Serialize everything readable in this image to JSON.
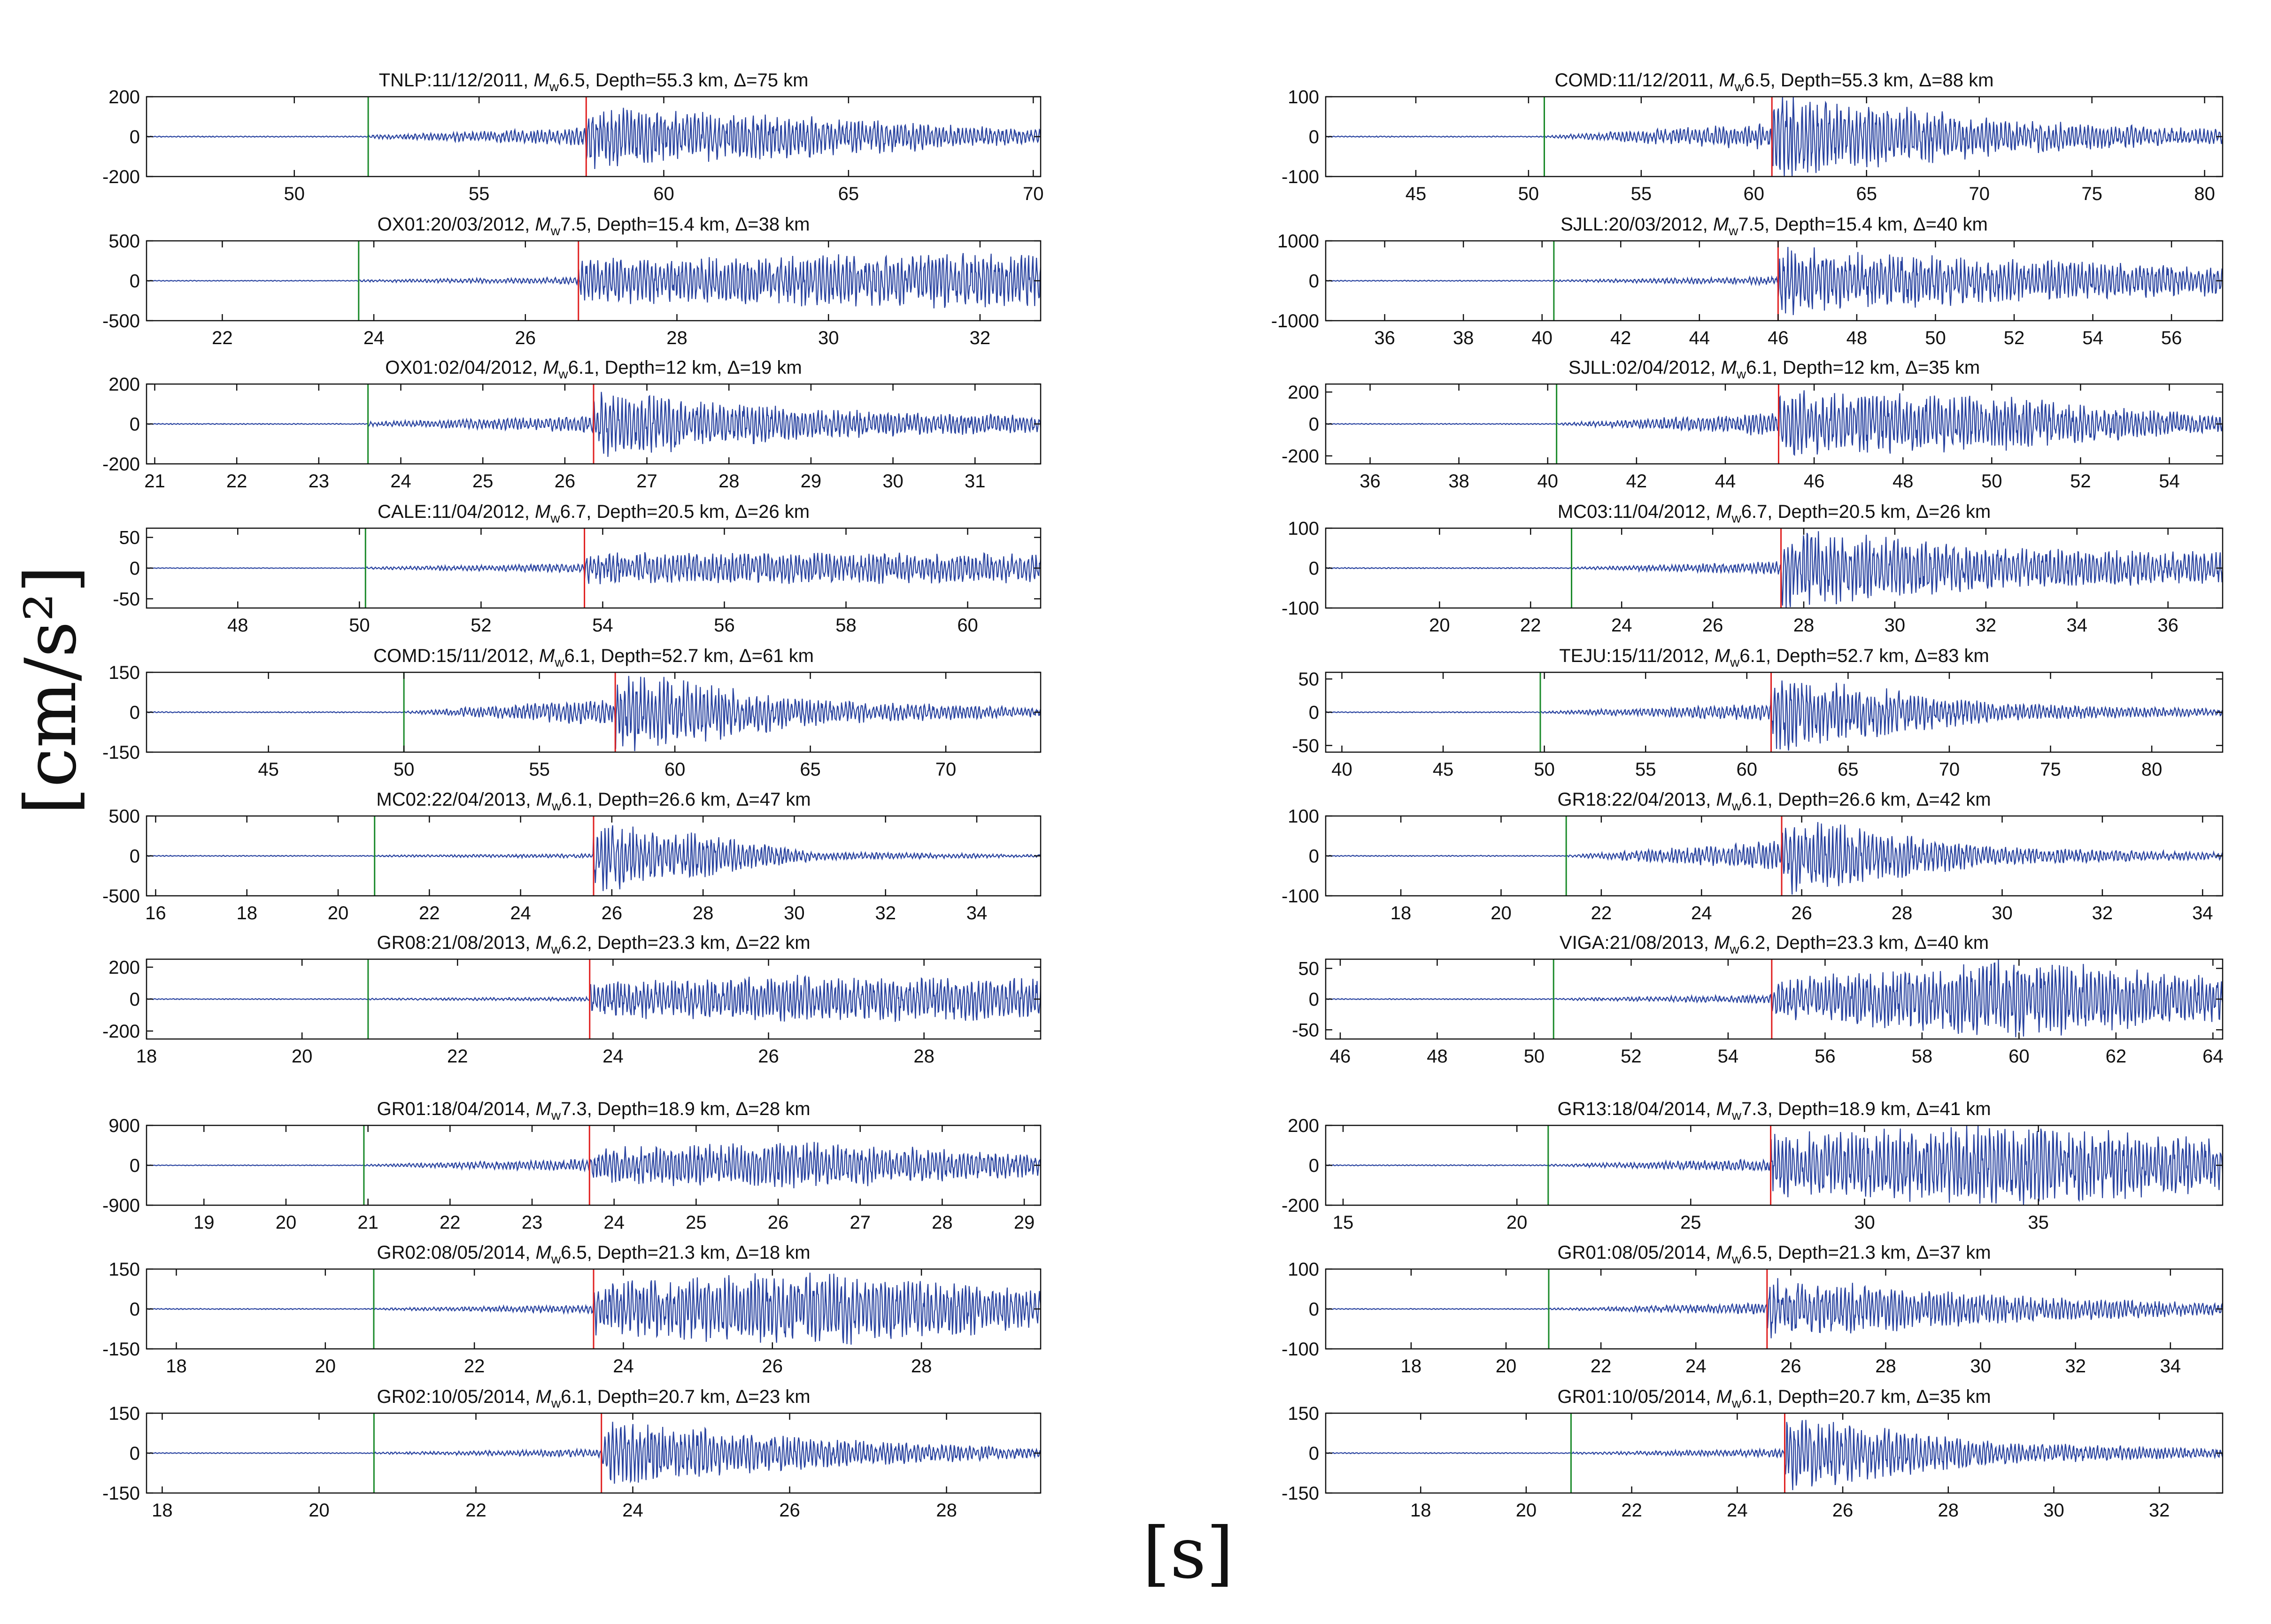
{
  "figure": {
    "y_axis_label": "[cm/s²]",
    "x_axis_label": "[s]",
    "colors": {
      "trace": "#2a44a0",
      "p_marker": "#1a8a2a",
      "s_marker": "#e02020",
      "axes": "#111111"
    }
  },
  "chart_data": [
    {
      "type": "line",
      "col": 0,
      "row": 0,
      "station": "TNLP",
      "date": "11/12/2011",
      "mw": "6.5",
      "depth": "55.3",
      "delta": "75",
      "title": "TNLP:11/12/2011, Mw6.5, Depth=55.3 km, Δ=75 km",
      "xlim": [
        46,
        70.2
      ],
      "xticks": [
        50,
        55,
        60,
        65,
        70
      ],
      "ylim": [
        -200,
        200
      ],
      "yticks": [
        200,
        0,
        -200
      ],
      "yticklabels": [
        "200",
        "0",
        "-200"
      ],
      "p_pick": 52.0,
      "s_pick": 57.9,
      "amp_max": 190,
      "env": [
        0.04,
        0.2,
        0.7,
        0.45,
        0.15
      ]
    },
    {
      "type": "line",
      "col": 0,
      "row": 1,
      "station": "OX01",
      "date": "20/03/2012",
      "mw": "7.5",
      "depth": "15.4",
      "delta": "38",
      "title": "OX01:20/03/2012, Mw7.5, Depth=15.4 km, Δ=38 km",
      "xlim": [
        21,
        32.8
      ],
      "xticks": [
        22,
        24,
        26,
        28,
        30,
        32
      ],
      "ylim": [
        -500,
        500
      ],
      "yticks": [
        500,
        0,
        -500
      ],
      "yticklabels": [
        "500",
        "0",
        "-500"
      ],
      "p_pick": 23.8,
      "s_pick": 26.7,
      "amp_max": 380,
      "env": [
        0.03,
        0.1,
        0.6,
        0.7,
        0.8
      ]
    },
    {
      "type": "line",
      "col": 0,
      "row": 2,
      "station": "OX01",
      "date": "02/04/2012",
      "mw": "6.1",
      "depth": "12",
      "delta": "19",
      "title": "OX01:02/04/2012, Mw6.1, Depth=12 km, Δ=19 km",
      "xlim": [
        20.9,
        31.8
      ],
      "xticks": [
        21,
        22,
        23,
        24,
        25,
        26,
        27,
        28,
        29,
        30,
        31
      ],
      "ylim": [
        -200,
        200
      ],
      "yticks": [
        200,
        0,
        -200
      ],
      "yticklabels": [
        "200",
        "0",
        "-200"
      ],
      "p_pick": 23.6,
      "s_pick": 26.35,
      "amp_max": 180,
      "env": [
        0.05,
        0.2,
        0.8,
        0.35,
        0.2
      ]
    },
    {
      "type": "line",
      "col": 0,
      "row": 3,
      "station": "CALE",
      "date": "11/04/2012",
      "mw": "6.7",
      "depth": "20.5",
      "delta": "26",
      "title": "CALE:11/04/2012, Mw6.7, Depth=20.5 km, Δ=26 km",
      "xlim": [
        46.5,
        61.2
      ],
      "xticks": [
        48,
        50,
        52,
        54,
        56,
        58,
        60
      ],
      "ylim": [
        -65,
        65
      ],
      "yticks": [
        50,
        0,
        -50
      ],
      "yticklabels": [
        "50",
        "0",
        "-50"
      ],
      "p_pick": 50.1,
      "s_pick": 53.7,
      "amp_max": 40,
      "env": [
        0.04,
        0.15,
        0.55,
        0.55,
        0.5
      ]
    },
    {
      "type": "line",
      "col": 0,
      "row": 4,
      "station": "COMD",
      "date": "15/11/2012",
      "mw": "6.1",
      "depth": "52.7",
      "delta": "61",
      "title": "COMD:15/11/2012, Mw6.1, Depth=52.7 km, Δ=61 km",
      "xlim": [
        40.5,
        73.5
      ],
      "xticks": [
        45,
        50,
        55,
        60,
        65,
        70
      ],
      "ylim": [
        -150,
        150
      ],
      "yticks": [
        150,
        0,
        -150
      ],
      "yticklabels": [
        "150",
        "0",
        "-150"
      ],
      "p_pick": 50.0,
      "s_pick": 57.8,
      "amp_max": 145,
      "env": [
        0.02,
        0.3,
        0.9,
        0.25,
        0.1
      ]
    },
    {
      "type": "line",
      "col": 0,
      "row": 5,
      "station": "MC02",
      "date": "22/04/2013",
      "mw": "6.1",
      "depth": "26.6",
      "delta": "47",
      "title": "MC02:22/04/2013, Mw6.1, Depth=26.6 km, Δ=47 km",
      "xlim": [
        15.8,
        35.4
      ],
      "xticks": [
        16,
        18,
        20,
        22,
        24,
        26,
        28,
        30,
        32,
        34
      ],
      "ylim": [
        -500,
        500
      ],
      "yticks": [
        500,
        0,
        -500
      ],
      "yticklabels": [
        "500",
        "0",
        "-500"
      ],
      "p_pick": 20.8,
      "s_pick": 25.6,
      "amp_max": 460,
      "env": [
        0.02,
        0.05,
        0.85,
        0.1,
        0.03
      ]
    },
    {
      "type": "line",
      "col": 0,
      "row": 6,
      "station": "GR08",
      "date": "21/08/2013",
      "mw": "6.2",
      "depth": "23.3",
      "delta": "22",
      "title": "GR08:21/08/2013, Mw6.2, Depth=23.3 km, Δ=22 km",
      "xlim": [
        18,
        29.5
      ],
      "xticks": [
        18,
        20,
        22,
        24,
        26,
        28
      ],
      "ylim": [
        -250,
        250
      ],
      "yticks": [
        200,
        0,
        -200
      ],
      "yticklabels": [
        "200",
        "0",
        "-200"
      ],
      "p_pick": 20.85,
      "s_pick": 23.7,
      "amp_max": 210,
      "env": [
        0.02,
        0.05,
        0.45,
        0.6,
        0.5
      ]
    },
    {
      "type": "line",
      "col": 0,
      "row": 7,
      "station": "GR01",
      "date": "18/04/2014",
      "mw": "7.3",
      "depth": "18.9",
      "delta": "28",
      "title": "GR01:18/04/2014, Mw7.3, Depth=18.9 km, Δ=28 km",
      "xlim": [
        18.3,
        29.2
      ],
      "xticks": [
        19,
        20,
        21,
        22,
        23,
        24,
        25,
        26,
        27,
        28,
        29
      ],
      "ylim": [
        -900,
        900
      ],
      "yticks": [
        900,
        0,
        -900
      ],
      "yticklabels": [
        "900",
        "0",
        "-900"
      ],
      "p_pick": 20.95,
      "s_pick": 23.7,
      "amp_max": 620,
      "env": [
        0.03,
        0.2,
        0.55,
        0.7,
        0.35
      ]
    },
    {
      "type": "line",
      "col": 0,
      "row": 8,
      "station": "GR02",
      "date": "08/05/2014",
      "mw": "6.5",
      "depth": "21.3",
      "delta": "18",
      "title": "GR02:08/05/2014, Mw6.5, Depth=21.3 km, Δ=18 km",
      "xlim": [
        17.6,
        29.6
      ],
      "xticks": [
        18,
        20,
        22,
        24,
        26,
        28
      ],
      "ylim": [
        -150,
        150
      ],
      "yticks": [
        150,
        0,
        -150
      ],
      "yticklabels": [
        "150",
        "0",
        "-150"
      ],
      "p_pick": 20.65,
      "s_pick": 23.6,
      "amp_max": 140,
      "env": [
        0.02,
        0.1,
        0.6,
        0.85,
        0.45
      ]
    },
    {
      "type": "line",
      "col": 0,
      "row": 9,
      "station": "GR02",
      "date": "10/05/2014",
      "mw": "6.1",
      "depth": "20.7",
      "delta": "23",
      "title": "GR02:10/05/2014, Mw6.1, Depth=20.7 km, Δ=23 km",
      "xlim": [
        17.8,
        29.2
      ],
      "xticks": [
        18,
        20,
        22,
        24,
        26,
        28
      ],
      "ylim": [
        -150,
        150
      ],
      "yticks": [
        150,
        0,
        -150
      ],
      "yticklabels": [
        "150",
        "0",
        "-150"
      ],
      "p_pick": 20.7,
      "s_pick": 23.6,
      "amp_max": 130,
      "env": [
        0.02,
        0.1,
        0.8,
        0.35,
        0.12
      ]
    },
    {
      "type": "line",
      "col": 1,
      "row": 0,
      "station": "COMD",
      "date": "11/12/2011",
      "mw": "6.5",
      "depth": "55.3",
      "delta": "88",
      "title": "COMD:11/12/2011, Mw6.5, Depth=55.3 km, Δ=88 km",
      "xlim": [
        41,
        80.8
      ],
      "xticks": [
        45,
        50,
        55,
        60,
        65,
        70,
        75,
        80
      ],
      "ylim": [
        -100,
        100
      ],
      "yticks": [
        100,
        0,
        -100
      ],
      "yticklabels": [
        "100",
        "0",
        "-100"
      ],
      "p_pick": 50.7,
      "s_pick": 60.8,
      "amp_max": 98,
      "env": [
        0.02,
        0.3,
        0.95,
        0.4,
        0.15
      ]
    },
    {
      "type": "line",
      "col": 1,
      "row": 1,
      "station": "SJLL",
      "date": "20/03/2012",
      "mw": "7.5",
      "depth": "15.4",
      "delta": "40",
      "title": "SJLL:20/03/2012, Mw7.5, Depth=15.4 km, Δ=40 km",
      "xlim": [
        34.5,
        57.3
      ],
      "xticks": [
        36,
        38,
        40,
        42,
        44,
        46,
        48,
        50,
        52,
        54,
        56
      ],
      "ylim": [
        -1000,
        1000
      ],
      "yticks": [
        1000,
        0,
        -1000
      ],
      "yticklabels": [
        "1000",
        "0",
        "-1000"
      ],
      "p_pick": 40.3,
      "s_pick": 46.0,
      "amp_max": 900,
      "env": [
        0.02,
        0.1,
        0.8,
        0.5,
        0.35
      ]
    },
    {
      "type": "line",
      "col": 1,
      "row": 2,
      "station": "SJLL",
      "date": "02/04/2012",
      "mw": "6.1",
      "depth": "12",
      "delta": "35",
      "title": "SJLL:02/04/2012, Mw6.1, Depth=12 km, Δ=35 km",
      "xlim": [
        35,
        55.2
      ],
      "xticks": [
        36,
        38,
        40,
        42,
        44,
        46,
        48,
        50,
        52,
        54
      ],
      "ylim": [
        -250,
        250
      ],
      "yticks": [
        200,
        0,
        -200
      ],
      "yticklabels": [
        "200",
        "0",
        "-200"
      ],
      "p_pick": 40.2,
      "s_pick": 45.2,
      "amp_max": 220,
      "env": [
        0.02,
        0.3,
        0.8,
        0.65,
        0.2
      ]
    },
    {
      "type": "line",
      "col": 1,
      "row": 3,
      "station": "MC03",
      "date": "11/04/2012",
      "mw": "6.7",
      "depth": "20.5",
      "delta": "26",
      "title": "MC03:11/04/2012, Mw6.7, Depth=20.5 km, Δ=26 km",
      "xlim": [
        17.5,
        37.2
      ],
      "xticks": [
        20,
        22,
        24,
        26,
        28,
        30,
        32,
        34,
        36
      ],
      "ylim": [
        -100,
        100
      ],
      "yticks": [
        100,
        0,
        -100
      ],
      "yticklabels": [
        "100",
        "0",
        "-100"
      ],
      "p_pick": 22.9,
      "s_pick": 27.5,
      "amp_max": 95,
      "env": [
        0.02,
        0.15,
        0.9,
        0.45,
        0.35
      ]
    },
    {
      "type": "line",
      "col": 1,
      "row": 4,
      "station": "TEJU",
      "date": "15/11/2012",
      "mw": "6.1",
      "depth": "52.7",
      "delta": "83",
      "title": "TEJU:15/11/2012, Mw6.1, Depth=52.7 km, Δ=83 km",
      "xlim": [
        39.2,
        83.5
      ],
      "xticks": [
        40,
        45,
        50,
        55,
        60,
        65,
        70,
        75,
        80
      ],
      "ylim": [
        -60,
        60
      ],
      "yticks": [
        50,
        0,
        -50
      ],
      "yticklabels": [
        "50",
        "0",
        "-50"
      ],
      "p_pick": 49.8,
      "s_pick": 61.2,
      "amp_max": 55,
      "env": [
        0.02,
        0.2,
        0.9,
        0.2,
        0.08
      ]
    },
    {
      "type": "line",
      "col": 1,
      "row": 5,
      "station": "GR18",
      "date": "22/04/2013",
      "mw": "6.1",
      "depth": "26.6",
      "delta": "42",
      "title": "GR18:22/04/2013, Mw6.1, Depth=26.6 km, Δ=42 km",
      "xlim": [
        16.5,
        34.4
      ],
      "xticks": [
        18,
        20,
        22,
        24,
        26,
        28,
        30,
        32,
        34
      ],
      "ylim": [
        -100,
        100
      ],
      "yticks": [
        100,
        0,
        -100
      ],
      "yticklabels": [
        "100",
        "0",
        "-100"
      ],
      "p_pick": 21.3,
      "s_pick": 25.6,
      "amp_max": 92,
      "env": [
        0.02,
        0.35,
        0.9,
        0.2,
        0.08
      ]
    },
    {
      "type": "line",
      "col": 1,
      "row": 6,
      "station": "VIGA",
      "date": "21/08/2013",
      "mw": "6.2",
      "depth": "23.3",
      "delta": "40",
      "title": "VIGA:21/08/2013, Mw6.2, Depth=23.3 km, Δ=40 km",
      "xlim": [
        45.7,
        64.2
      ],
      "xticks": [
        46,
        48,
        50,
        52,
        54,
        56,
        58,
        60,
        62,
        64
      ],
      "ylim": [
        -65,
        65
      ],
      "yticks": [
        50,
        0,
        -50
      ],
      "yticklabels": [
        "50",
        "0",
        "-50"
      ],
      "p_pick": 50.4,
      "s_pick": 54.9,
      "amp_max": 60,
      "env": [
        0.02,
        0.1,
        0.45,
        0.9,
        0.55
      ]
    },
    {
      "type": "line",
      "col": 1,
      "row": 7,
      "station": "GR13",
      "date": "18/04/2014",
      "mw": "7.3",
      "depth": "18.9",
      "delta": "41",
      "title": "GR13:18/04/2014, Mw7.3, Depth=18.9 km, Δ=41 km",
      "xlim": [
        14.5,
        40.3
      ],
      "xticks": [
        15,
        20,
        25,
        30,
        35
      ],
      "ylim": [
        -200,
        200
      ],
      "yticks": [
        200,
        0,
        -200
      ],
      "yticklabels": [
        "200",
        "0",
        "-200"
      ],
      "p_pick": 20.9,
      "s_pick": 27.3,
      "amp_max": 190,
      "env": [
        0.02,
        0.15,
        0.7,
        0.9,
        0.6
      ]
    },
    {
      "type": "line",
      "col": 1,
      "row": 8,
      "station": "GR01",
      "date": "08/05/2014",
      "mw": "6.5",
      "depth": "21.3",
      "delta": "37",
      "title": "GR01:08/05/2014, Mw6.5, Depth=21.3 km, Δ=37 km",
      "xlim": [
        16.2,
        35.1
      ],
      "xticks": [
        18,
        20,
        22,
        24,
        26,
        28,
        30,
        32,
        34
      ],
      "ylim": [
        -100,
        100
      ],
      "yticks": [
        100,
        0,
        -100
      ],
      "yticklabels": [
        "100",
        "0",
        "-100"
      ],
      "p_pick": 20.9,
      "s_pick": 25.5,
      "amp_max": 85,
      "env": [
        0.02,
        0.15,
        0.8,
        0.35,
        0.15
      ]
    },
    {
      "type": "line",
      "col": 1,
      "row": 9,
      "station": "GR01",
      "date": "10/05/2014",
      "mw": "6.1",
      "depth": "20.7",
      "delta": "35",
      "title": "GR01:10/05/2014, Mw6.1, Depth=20.7 km, Δ=35 km",
      "xlim": [
        16.2,
        33.2
      ],
      "xticks": [
        18,
        20,
        22,
        24,
        26,
        28,
        30,
        32
      ],
      "ylim": [
        -150,
        150
      ],
      "yticks": [
        150,
        0,
        -150
      ],
      "yticklabels": [
        "150",
        "0",
        "-150"
      ],
      "p_pick": 20.85,
      "s_pick": 24.9,
      "amp_max": 135,
      "env": [
        0.02,
        0.1,
        0.85,
        0.25,
        0.1
      ]
    }
  ]
}
